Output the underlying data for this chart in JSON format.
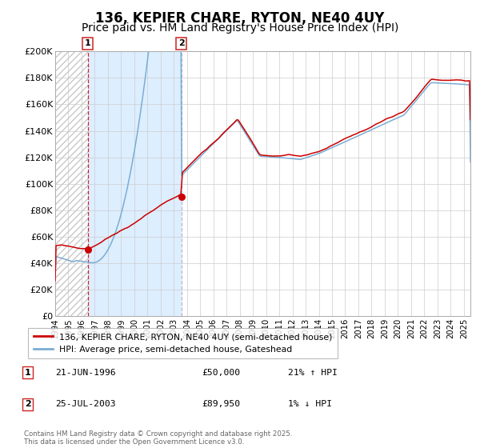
{
  "title": "136, KEPIER CHARE, RYTON, NE40 4UY",
  "subtitle": "Price paid vs. HM Land Registry's House Price Index (HPI)",
  "xlim": [
    1994.0,
    2025.5
  ],
  "ylim": [
    0,
    200000
  ],
  "yticks": [
    0,
    20000,
    40000,
    60000,
    80000,
    100000,
    120000,
    140000,
    160000,
    180000,
    200000
  ],
  "ytick_labels": [
    "£0",
    "£20K",
    "£40K",
    "£60K",
    "£80K",
    "£100K",
    "£120K",
    "£140K",
    "£160K",
    "£180K",
    "£200K"
  ],
  "xticks": [
    1994,
    1995,
    1996,
    1997,
    1998,
    1999,
    2000,
    2001,
    2002,
    2003,
    2004,
    2005,
    2006,
    2007,
    2008,
    2009,
    2010,
    2011,
    2012,
    2013,
    2014,
    2015,
    2016,
    2017,
    2018,
    2019,
    2020,
    2021,
    2022,
    2023,
    2024,
    2025
  ],
  "hpi_color": "#7aadd4",
  "price_color": "#cc0000",
  "marker1_x": 1996.47,
  "marker1_y": 50000,
  "marker2_x": 2003.56,
  "marker2_y": 89950,
  "vline1_x": 1996.47,
  "vline2_x": 2003.56,
  "shade_color": "#ddeeff",
  "hatch_color": "#c8c8c8",
  "legend_label1": "136, KEPIER CHARE, RYTON, NE40 4UY (semi-detached house)",
  "legend_label2": "HPI: Average price, semi-detached house, Gateshead",
  "info1_num": "1",
  "info1_date": "21-JUN-1996",
  "info1_price": "£50,000",
  "info1_hpi": "21% ↑ HPI",
  "info2_num": "2",
  "info2_date": "25-JUL-2003",
  "info2_price": "£89,950",
  "info2_hpi": "1% ↓ HPI",
  "footer": "Contains HM Land Registry data © Crown copyright and database right 2025.\nThis data is licensed under the Open Government Licence v3.0.",
  "background_color": "#ffffff",
  "grid_color": "#cccccc",
  "title_fontsize": 12,
  "subtitle_fontsize": 10
}
